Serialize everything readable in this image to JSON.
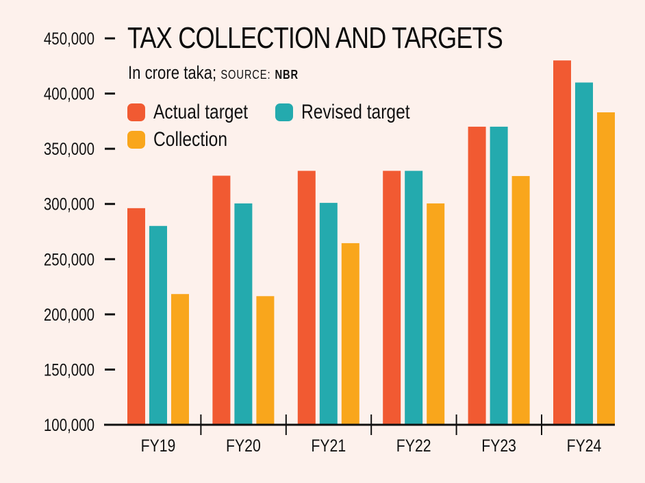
{
  "chart_data": {
    "type": "bar",
    "title": "TAX COLLECTION AND TARGETS",
    "subtitle": "In crore taka;",
    "source_label": "SOURCE:",
    "source": "NBR",
    "xlabel": "",
    "ylabel": "",
    "ylim": [
      100000,
      450000
    ],
    "yticks": [
      100000,
      150000,
      200000,
      250000,
      300000,
      350000,
      400000,
      450000
    ],
    "ytick_labels": [
      "100,000",
      "150,000",
      "200,000",
      "250,000",
      "300,000",
      "350,000",
      "400,000",
      "450,000"
    ],
    "categories": [
      "FY19",
      "FY20",
      "FY21",
      "FY22",
      "FY23",
      "FY24"
    ],
    "series": [
      {
        "name": "Actual target",
        "color": "#f15a32",
        "values": [
          296200,
          325600,
          330000,
          330000,
          370000,
          430000
        ]
      },
      {
        "name": "Revised target",
        "color": "#24aaae",
        "values": [
          280100,
          300500,
          301000,
          330000,
          370000,
          410000
        ]
      },
      {
        "name": "Collection",
        "color": "#f9a61c",
        "values": [
          218400,
          216500,
          264500,
          300500,
          325300,
          383000
        ]
      }
    ],
    "legend_position": "top-left",
    "grid": false
  }
}
